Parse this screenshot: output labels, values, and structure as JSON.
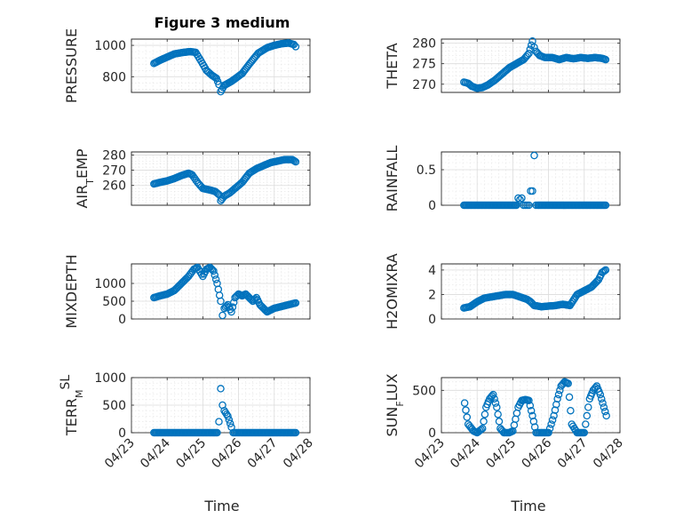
{
  "figure": {
    "title": "Figure 3 medium",
    "xlabel": "Time",
    "marker_color": "#0072bd"
  },
  "chart_data": [
    {
      "type": "scatter",
      "ylabel": "PRESSURE",
      "ylim": [
        700,
        1040
      ],
      "yticks": [
        800,
        1000
      ],
      "ytick_labels": [
        "800",
        "1000"
      ],
      "xlim": [
        0,
        5
      ],
      "xticks": [
        0,
        1,
        2,
        3,
        4,
        5
      ],
      "xtick_labels": [
        "04/23",
        "04/24",
        "04/25",
        "04/26",
        "04/27",
        "04/28"
      ],
      "show_xticklabels": false,
      "series_x": [
        0.63,
        0.8,
        1.0,
        1.2,
        1.45,
        1.65,
        1.8,
        1.95,
        2.1,
        2.25,
        2.38,
        2.45,
        2.5,
        2.6,
        2.8,
        3.1,
        3.3,
        3.55,
        3.8,
        4.0,
        4.2,
        4.4,
        4.55,
        4.6
      ],
      "series_y": [
        885,
        905,
        925,
        945,
        955,
        960,
        955,
        900,
        840,
        810,
        790,
        750,
        705,
        745,
        770,
        820,
        880,
        950,
        985,
        1000,
        1010,
        1015,
        1005,
        992
      ]
    },
    {
      "type": "scatter",
      "ylabel": "THETA",
      "ylim": [
        268,
        281
      ],
      "yticks": [
        270,
        275,
        280
      ],
      "ytick_labels": [
        "270",
        "275",
        "280"
      ],
      "xlim": [
        0,
        5
      ],
      "xticks": [
        0,
        1,
        2,
        3,
        4,
        5
      ],
      "xtick_labels": [
        "04/23",
        "04/24",
        "04/25",
        "04/26",
        "04/27",
        "04/28"
      ],
      "show_xticklabels": false,
      "series_x": [
        0.63,
        0.75,
        0.85,
        1.0,
        1.15,
        1.3,
        1.5,
        1.7,
        1.9,
        2.1,
        2.3,
        2.45,
        2.55,
        2.6,
        2.65,
        2.75,
        2.9,
        3.1,
        3.3,
        3.5,
        3.7,
        3.9,
        4.1,
        4.3,
        4.5,
        4.6
      ],
      "series_y": [
        270.5,
        270.2,
        269.5,
        269.0,
        269.2,
        269.8,
        271.0,
        272.5,
        274.0,
        275.0,
        276.0,
        277.5,
        280.5,
        279.0,
        278.0,
        277.0,
        276.5,
        276.5,
        276.0,
        276.5,
        276.2,
        276.5,
        276.3,
        276.5,
        276.3,
        276.0
      ]
    },
    {
      "type": "scatter",
      "ylabel": "AIR_TEMP",
      "ylim": [
        247,
        282
      ],
      "yticks": [
        260,
        270,
        280
      ],
      "ytick_labels": [
        "260",
        "270",
        "280"
      ],
      "xlim": [
        0,
        5
      ],
      "xticks": [
        0,
        1,
        2,
        3,
        4,
        5
      ],
      "xtick_labels": [
        "04/23",
        "04/24",
        "04/25",
        "04/26",
        "04/27",
        "04/28"
      ],
      "show_xticklabels": false,
      "series_x": [
        0.63,
        0.8,
        1.0,
        1.2,
        1.4,
        1.6,
        1.7,
        1.85,
        2.0,
        2.2,
        2.35,
        2.45,
        2.5,
        2.6,
        2.75,
        2.9,
        3.1,
        3.3,
        3.5,
        3.7,
        3.9,
        4.1,
        4.3,
        4.5,
        4.6
      ],
      "series_y": [
        261,
        262,
        263,
        264.5,
        266.5,
        268,
        267,
        262,
        258,
        257,
        256,
        254,
        250,
        253,
        255,
        258,
        262,
        268,
        271,
        273,
        275,
        276,
        277,
        277,
        275.5
      ]
    },
    {
      "type": "scatter",
      "ylabel": "RAINFALL",
      "ylim": [
        0,
        0.75
      ],
      "yticks": [
        0,
        0.5
      ],
      "ytick_labels": [
        "0",
        "0.5"
      ],
      "xlim": [
        0,
        5
      ],
      "xticks": [
        0,
        1,
        2,
        3,
        4,
        5
      ],
      "xtick_labels": [
        "04/23",
        "04/24",
        "04/25",
        "04/26",
        "04/27",
        "04/28"
      ],
      "show_xticklabels": false,
      "series_x": [
        0.63,
        0.8,
        1.0,
        1.2,
        1.4,
        1.6,
        1.8,
        2.0,
        2.1,
        2.15,
        2.2,
        2.25,
        2.3,
        2.35,
        2.4,
        2.45,
        2.5,
        2.55,
        2.6,
        2.65,
        2.7,
        2.8,
        3.0,
        3.2,
        3.4,
        3.6,
        3.8,
        4.0,
        4.2,
        4.4,
        4.6
      ],
      "series_y": [
        0,
        0,
        0,
        0,
        0,
        0,
        0,
        0,
        0,
        0.1,
        0.08,
        0.1,
        0,
        0,
        0,
        0,
        0.2,
        0.2,
        0.7,
        0,
        0,
        0,
        0,
        0,
        0,
        0,
        0,
        0,
        0,
        0,
        0
      ]
    },
    {
      "type": "scatter",
      "ylabel": "MIXDEPTH",
      "ylim": [
        0,
        1550
      ],
      "yticks": [
        0,
        500,
        1000
      ],
      "ytick_labels": [
        "0",
        "500",
        "1000"
      ],
      "xlim": [
        0,
        5
      ],
      "xticks": [
        0,
        1,
        2,
        3,
        4,
        5
      ],
      "xtick_labels": [
        "04/23",
        "04/24",
        "04/25",
        "04/26",
        "04/27",
        "04/28"
      ],
      "show_xticklabels": false,
      "series_x": [
        0.63,
        0.8,
        1.0,
        1.2,
        1.4,
        1.6,
        1.75,
        1.85,
        2.0,
        2.1,
        2.2,
        2.3,
        2.4,
        2.5,
        2.55,
        2.6,
        2.7,
        2.8,
        2.9,
        3.0,
        3.1,
        3.2,
        3.3,
        3.4,
        3.5,
        3.6,
        3.8,
        4.0,
        4.2,
        4.4,
        4.6
      ],
      "series_y": [
        600,
        650,
        700,
        800,
        1000,
        1200,
        1400,
        1450,
        1200,
        1400,
        1450,
        1350,
        1000,
        500,
        100,
        300,
        400,
        200,
        600,
        700,
        650,
        700,
        600,
        500,
        600,
        400,
        200,
        300,
        350,
        400,
        450
      ]
    },
    {
      "type": "scatter",
      "ylabel": "H2OMIXRA",
      "ylim": [
        0,
        4.5
      ],
      "yticks": [
        0,
        2,
        4
      ],
      "ytick_labels": [
        "0",
        "2",
        "4"
      ],
      "xlim": [
        0,
        5
      ],
      "xticks": [
        0,
        1,
        2,
        3,
        4,
        5
      ],
      "xtick_labels": [
        "04/23",
        "04/24",
        "04/25",
        "04/26",
        "04/27",
        "04/28"
      ],
      "show_xticklabels": false,
      "series_x": [
        0.63,
        0.8,
        1.0,
        1.2,
        1.4,
        1.6,
        1.8,
        2.0,
        2.2,
        2.4,
        2.5,
        2.6,
        2.8,
        3.0,
        3.2,
        3.4,
        3.6,
        3.8,
        4.0,
        4.2,
        4.4,
        4.5,
        4.6
      ],
      "series_y": [
        0.9,
        1.0,
        1.4,
        1.7,
        1.8,
        1.9,
        2.0,
        2.0,
        1.8,
        1.6,
        1.4,
        1.1,
        1.0,
        1.05,
        1.1,
        1.2,
        1.1,
        2.0,
        2.3,
        2.6,
        3.2,
        3.8,
        4.0
      ]
    },
    {
      "type": "scatter",
      "ylabel": "TERR_MSL",
      "ylim": [
        0,
        1000
      ],
      "yticks": [
        0,
        500,
        1000
      ],
      "ytick_labels": [
        "0",
        "500",
        "1000"
      ],
      "xlim": [
        0,
        5
      ],
      "xticks": [
        0,
        1,
        2,
        3,
        4,
        5
      ],
      "xtick_labels": [
        "04/23",
        "04/24",
        "04/25",
        "04/26",
        "04/27",
        "04/28"
      ],
      "show_xticklabels": true,
      "series_x": [
        0.63,
        0.8,
        1.0,
        1.2,
        1.4,
        1.6,
        1.8,
        2.0,
        2.2,
        2.4,
        2.45,
        2.5,
        2.55,
        2.6,
        2.7,
        2.8,
        2.85,
        3.0,
        3.2,
        3.4,
        3.6,
        3.8,
        4.0,
        4.2,
        4.4,
        4.6
      ],
      "series_y": [
        0,
        0,
        0,
        0,
        0,
        0,
        0,
        0,
        0,
        0,
        200,
        800,
        500,
        400,
        300,
        100,
        0,
        0,
        0,
        0,
        0,
        0,
        0,
        0,
        0,
        0
      ]
    },
    {
      "type": "scatter",
      "ylabel": "SUN_FLUX",
      "ylim": [
        0,
        650
      ],
      "yticks": [
        0,
        500
      ],
      "ytick_labels": [
        "0",
        "500"
      ],
      "xlim": [
        0,
        5
      ],
      "xticks": [
        0,
        1,
        2,
        3,
        4,
        5
      ],
      "xtick_labels": [
        "04/23",
        "04/24",
        "04/25",
        "04/26",
        "04/27",
        "04/28"
      ],
      "show_xticklabels": true,
      "series_x": [
        0.65,
        0.75,
        0.9,
        1.0,
        1.15,
        1.25,
        1.35,
        1.45,
        1.55,
        1.65,
        1.75,
        1.9,
        2.0,
        2.15,
        2.25,
        2.35,
        2.45,
        2.55,
        2.65,
        2.8,
        3.0,
        3.15,
        3.25,
        3.35,
        3.45,
        3.55,
        3.65,
        3.8,
        4.0,
        4.15,
        4.25,
        4.35,
        4.45,
        4.55,
        4.62
      ],
      "series_y": [
        350,
        100,
        20,
        0,
        50,
        300,
        400,
        450,
        300,
        50,
        0,
        0,
        20,
        300,
        380,
        390,
        380,
        200,
        0,
        0,
        0,
        200,
        400,
        550,
        600,
        580,
        100,
        0,
        0,
        400,
        500,
        550,
        450,
        300,
        200
      ]
    }
  ]
}
